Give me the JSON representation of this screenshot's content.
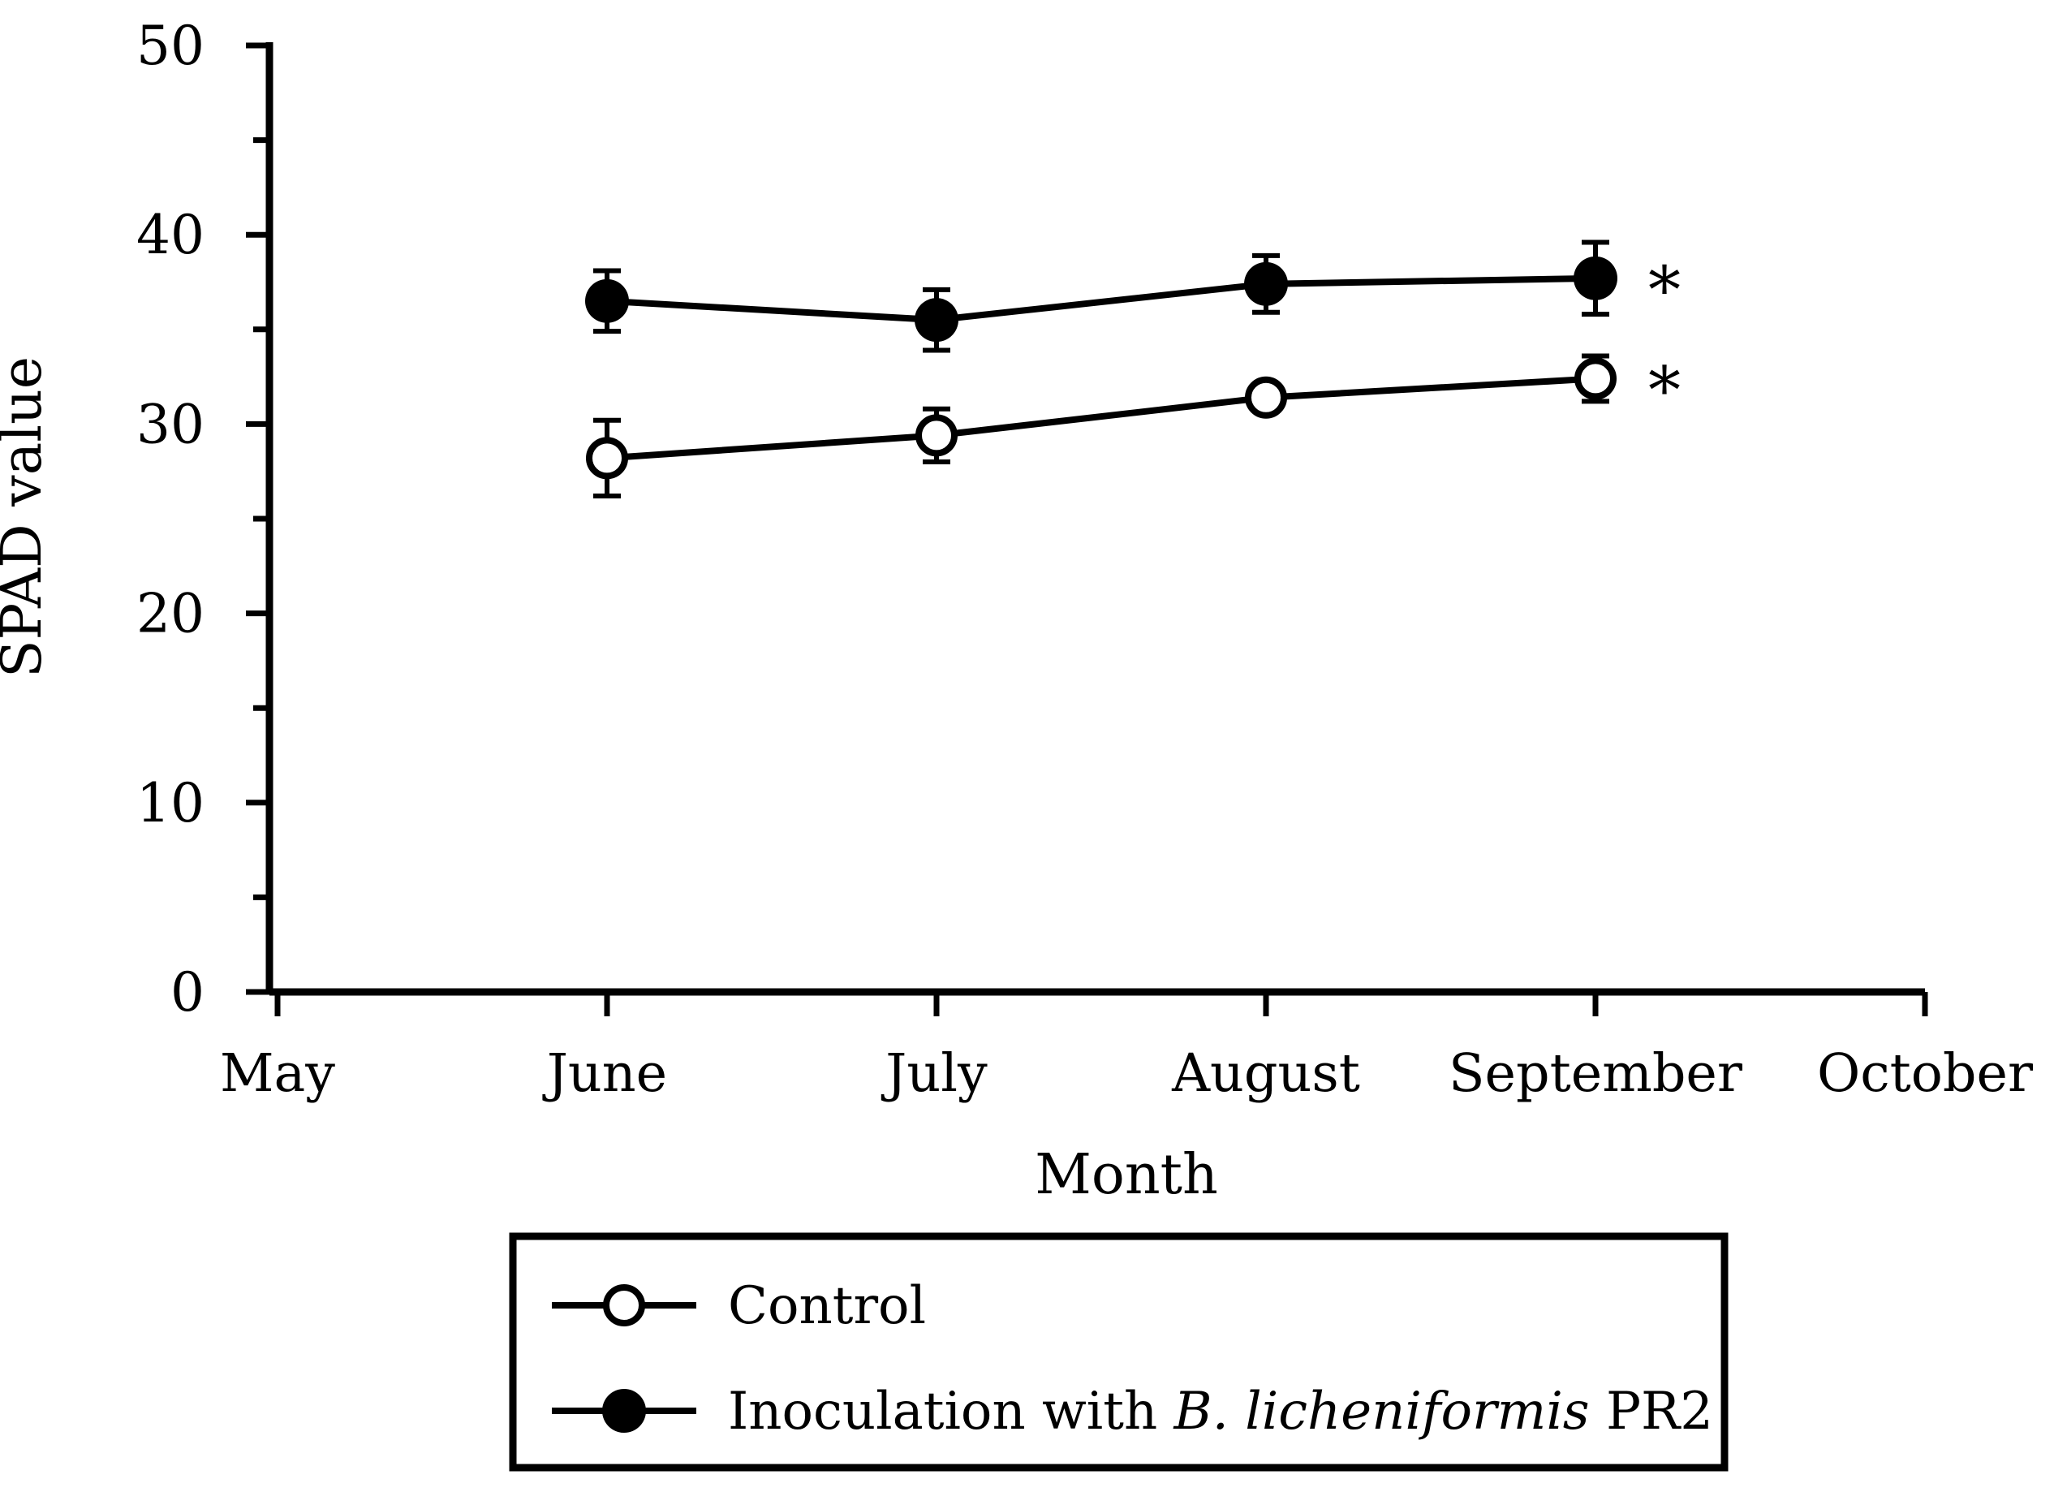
{
  "figure": {
    "background_color": "#ffffff",
    "ink_color": "#000000"
  },
  "chart_data": {
    "type": "line",
    "title": "",
    "xlabel": "Month",
    "ylabel": "SPAD value",
    "x_categories": [
      "May",
      "June",
      "July",
      "August",
      "September",
      "October"
    ],
    "y_axis": {
      "min": 0,
      "max": 50,
      "major_tick_step": 10,
      "minor_tick_step": 5,
      "tick_labels": [
        "0",
        "10",
        "20",
        "30",
        "40",
        "50"
      ]
    },
    "grid": false,
    "legend_position": "bottom",
    "series": [
      {
        "name": "Control",
        "marker": "open-circle",
        "line_color": "#000000",
        "x": [
          "June",
          "July",
          "August",
          "September"
        ],
        "values": [
          28.2,
          29.4,
          31.4,
          32.4
        ],
        "errors": [
          2.0,
          1.4,
          0.6,
          1.2
        ],
        "significance_marker": "*"
      },
      {
        "name": "Inoculation with B. licheniformis PR2",
        "marker": "filled-circle",
        "line_color": "#000000",
        "x": [
          "June",
          "July",
          "August",
          "September"
        ],
        "values": [
          36.5,
          35.5,
          37.4,
          37.7
        ],
        "errors": [
          1.6,
          1.6,
          1.5,
          1.9
        ],
        "significance_marker": "*"
      }
    ]
  },
  "legend": {
    "border": true,
    "items": [
      {
        "marker": "open-circle",
        "label_parts": [
          {
            "text": "Control",
            "italic": false
          }
        ]
      },
      {
        "marker": "filled-circle",
        "label_parts": [
          {
            "text": "Inoculation with ",
            "italic": false
          },
          {
            "text": "B. licheniformis",
            "italic": true
          },
          {
            "text": " PR2",
            "italic": false
          }
        ]
      }
    ]
  }
}
